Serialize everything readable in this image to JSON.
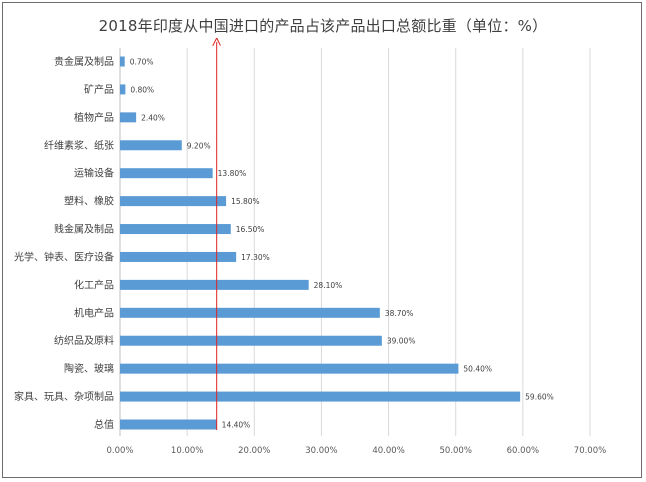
{
  "chart_data": {
    "type": "bar",
    "orientation": "horizontal",
    "title": "2018年印度从中国进口的产品占该产品出口总额比重（单位：%）",
    "categories": [
      "贵金属及制品",
      "矿产品",
      "植物产品",
      "纤维素浆、纸张",
      "运输设备",
      "塑料、橡胶",
      "贱金属及制品",
      "光学、钟表、医疗设备",
      "化工产品",
      "机电产品",
      "纺织品及原料",
      "陶瓷、玻璃",
      "家具、玩具、杂项制品",
      "总值"
    ],
    "values": [
      0.7,
      0.8,
      2.4,
      9.2,
      13.8,
      15.8,
      16.5,
      17.3,
      28.1,
      38.7,
      39.0,
      50.4,
      59.6,
      14.4
    ],
    "value_labels": [
      "0.70%",
      "0.80%",
      "2.40%",
      "9.20%",
      "13.80%",
      "15.80%",
      "16.50%",
      "17.30%",
      "28.10%",
      "38.70%",
      "39.00%",
      "50.40%",
      "59.60%",
      "14.40%"
    ],
    "xlim": [
      0,
      70
    ],
    "x_ticks": [
      0,
      10,
      20,
      30,
      40,
      50,
      60,
      70
    ],
    "x_tick_labels": [
      "0.00%",
      "10.00%",
      "20.00%",
      "30.00%",
      "40.00%",
      "50.00%",
      "60.00%",
      "70.00%"
    ],
    "grid": true,
    "reference_line": {
      "x": 14.4,
      "color": "#e02020"
    },
    "bar_color": "#5b9bd5"
  }
}
